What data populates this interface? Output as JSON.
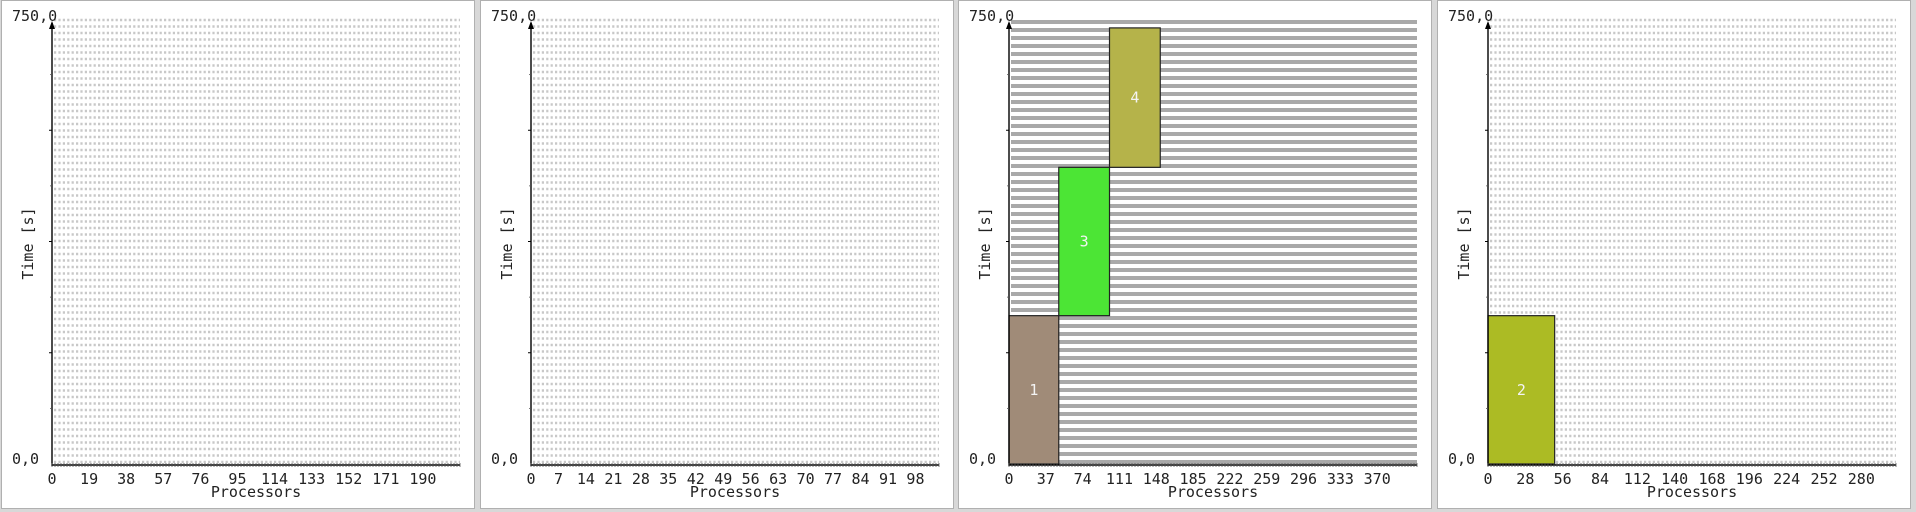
{
  "chart_data": [
    {
      "type": "gantt",
      "xlabel": "Processors",
      "ylabel": "Time [s]",
      "ylim": [
        0,
        750
      ],
      "y_top_label": "750,0",
      "y_bottom_label": "0,0",
      "x_max": 209,
      "x_ticks": [
        0,
        19,
        38,
        57,
        76,
        95,
        114,
        133,
        152,
        171,
        190
      ],
      "hatch": "light",
      "jobs": []
    },
    {
      "type": "gantt",
      "xlabel": "Processors",
      "ylabel": "Time [s]",
      "ylim": [
        0,
        750
      ],
      "y_top_label": "750,0",
      "y_bottom_label": "0,0",
      "x_max": 104,
      "x_ticks": [
        0,
        7,
        14,
        21,
        28,
        35,
        42,
        49,
        56,
        63,
        70,
        77,
        84,
        91,
        98
      ],
      "hatch": "light",
      "jobs": []
    },
    {
      "type": "gantt",
      "xlabel": "Processors",
      "ylabel": "Time [s]",
      "ylim": [
        0,
        750
      ],
      "y_top_label": "750,0",
      "y_bottom_label": "0,0",
      "x_max": 410,
      "x_ticks": [
        0,
        37,
        74,
        111,
        148,
        185,
        222,
        259,
        296,
        333,
        370
      ],
      "hatch": "dark",
      "jobs": [
        {
          "id": "1",
          "x0": 0,
          "x1": 50,
          "t0": 0,
          "t1": 250,
          "color": "#a08b78"
        },
        {
          "id": "3",
          "x0": 50,
          "x1": 101,
          "t0": 250,
          "t1": 500,
          "color": "#4ce535"
        },
        {
          "id": "4",
          "x0": 101,
          "x1": 152,
          "t0": 500,
          "t1": 735,
          "color": "#b5b34a"
        }
      ]
    },
    {
      "type": "gantt",
      "xlabel": "Processors",
      "ylabel": "Time [s]",
      "ylim": [
        0,
        750
      ],
      "y_top_label": "750,0",
      "y_bottom_label": "0,0",
      "x_max": 306,
      "x_ticks": [
        0,
        28,
        56,
        84,
        112,
        140,
        168,
        196,
        224,
        252,
        280
      ],
      "hatch": "light",
      "jobs": [
        {
          "id": "2",
          "x0": 0,
          "x1": 50,
          "t0": 0,
          "t1": 250,
          "color": "#acbb24"
        }
      ]
    }
  ]
}
